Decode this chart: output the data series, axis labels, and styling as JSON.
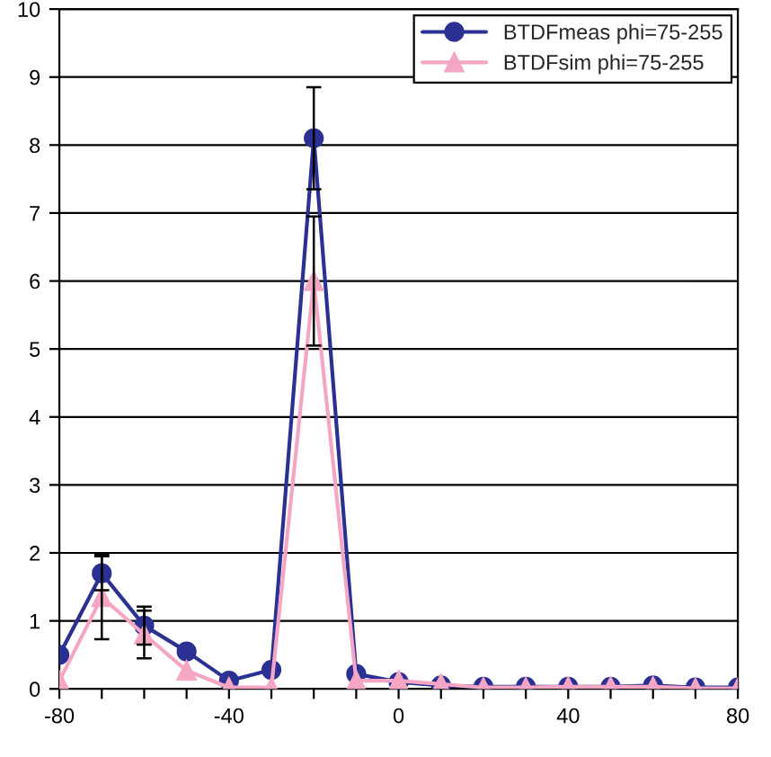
{
  "chart_data": {
    "type": "line",
    "x": [
      -80,
      -70,
      -60,
      -50,
      -40,
      -30,
      -20,
      -10,
      0,
      10,
      20,
      30,
      40,
      50,
      60,
      70,
      80
    ],
    "series": [
      {
        "name": "BTDFmeas phi=75-255",
        "color": "#2b3192",
        "marker": "circle",
        "values": [
          0.5,
          1.7,
          0.93,
          0.55,
          0.12,
          0.28,
          8.1,
          0.22,
          0.1,
          0.05,
          0.03,
          0.03,
          0.03,
          0.03,
          0.05,
          0.02,
          0.02
        ],
        "errors": [
          null,
          0.25,
          0.28,
          null,
          null,
          null,
          0.75,
          null,
          null,
          null,
          null,
          null,
          null,
          null,
          null,
          null,
          null
        ]
      },
      {
        "name": "BTDFsim phi=75-255",
        "color": "#f4a6c4",
        "marker": "triangle",
        "values": [
          0.12,
          1.35,
          0.8,
          0.27,
          0.02,
          0.02,
          6.0,
          0.12,
          0.12,
          0.07,
          0.02,
          0.02,
          0.03,
          0.03,
          0.03,
          0.01,
          0.01
        ],
        "errors": [
          null,
          0.62,
          0.35,
          null,
          null,
          null,
          0.95,
          null,
          null,
          null,
          null,
          null,
          null,
          null,
          null,
          null,
          null
        ]
      }
    ],
    "xlim": [
      -80,
      80
    ],
    "xticks": [
      -80,
      {
        "value": -70,
        "label": null
      },
      {
        "value": -60,
        "label": null
      },
      {
        "value": -50,
        "label": null
      },
      -40,
      {
        "value": -30,
        "label": null
      },
      {
        "value": -20,
        "label": null
      },
      {
        "value": -10,
        "label": null
      },
      0,
      {
        "value": 10,
        "label": null
      },
      {
        "value": 20,
        "label": null
      },
      {
        "value": 30,
        "label": null
      },
      40,
      {
        "value": 50,
        "label": null
      },
      {
        "value": 60,
        "label": null
      },
      {
        "value": 70,
        "label": null
      },
      80
    ],
    "ylim": [
      0,
      10
    ],
    "yticks": [
      0,
      1,
      2,
      3,
      4,
      5,
      6,
      7,
      8,
      9,
      10
    ],
    "grid": "y",
    "legend": "top right"
  }
}
